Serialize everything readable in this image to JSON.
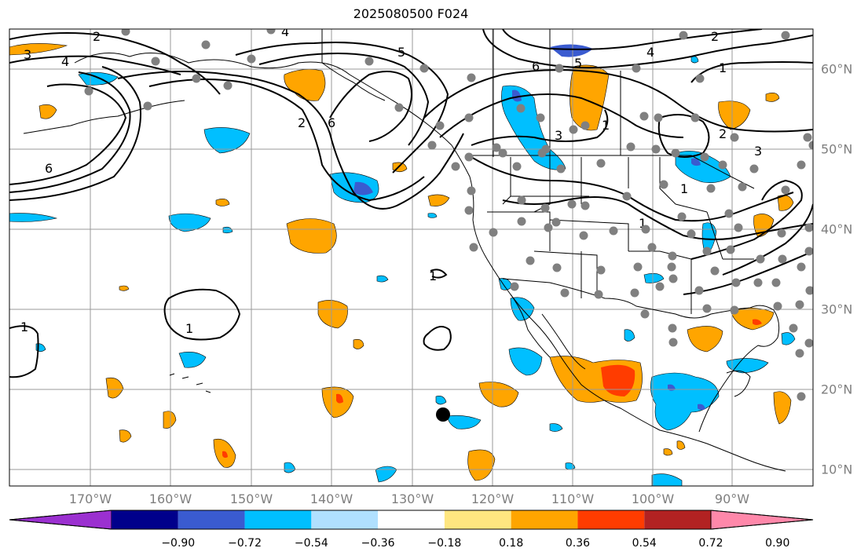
{
  "title": "2025080500 F024",
  "longitude_labels": [
    "170°W",
    "160°W",
    "150°W",
    "140°W",
    "130°W",
    "120°W",
    "110°W",
    "100°W",
    "90°W"
  ],
  "latitude_labels": [
    "60°N",
    "50°N",
    "40°N",
    "30°N",
    "20°N",
    "10°N"
  ],
  "colorbar": {
    "ticks": [
      "−0.90",
      "−0.72",
      "−0.54",
      "−0.36",
      "−0.18",
      "0.18",
      "0.36",
      "0.54",
      "0.72",
      "0.90"
    ],
    "colors": [
      "#9b30d0",
      "#00008b",
      "#3a5bd0",
      "#00bfff",
      "#b0e0ff",
      "#ffffff",
      "#ffe680",
      "#ffa500",
      "#ff3c00",
      "#b22222",
      "#ff88aa"
    ]
  },
  "contour_labels": [
    "2",
    "4",
    "3",
    "4",
    "5",
    "6",
    "5",
    "4",
    "2",
    "1",
    "6",
    "2",
    "6",
    "3",
    "1",
    "2",
    "3",
    "1",
    "1",
    "1",
    "1",
    "1"
  ],
  "colors": {
    "gridline": "#999999",
    "station_dot": "#808080",
    "contour": "#000000",
    "marker": "#000000"
  }
}
